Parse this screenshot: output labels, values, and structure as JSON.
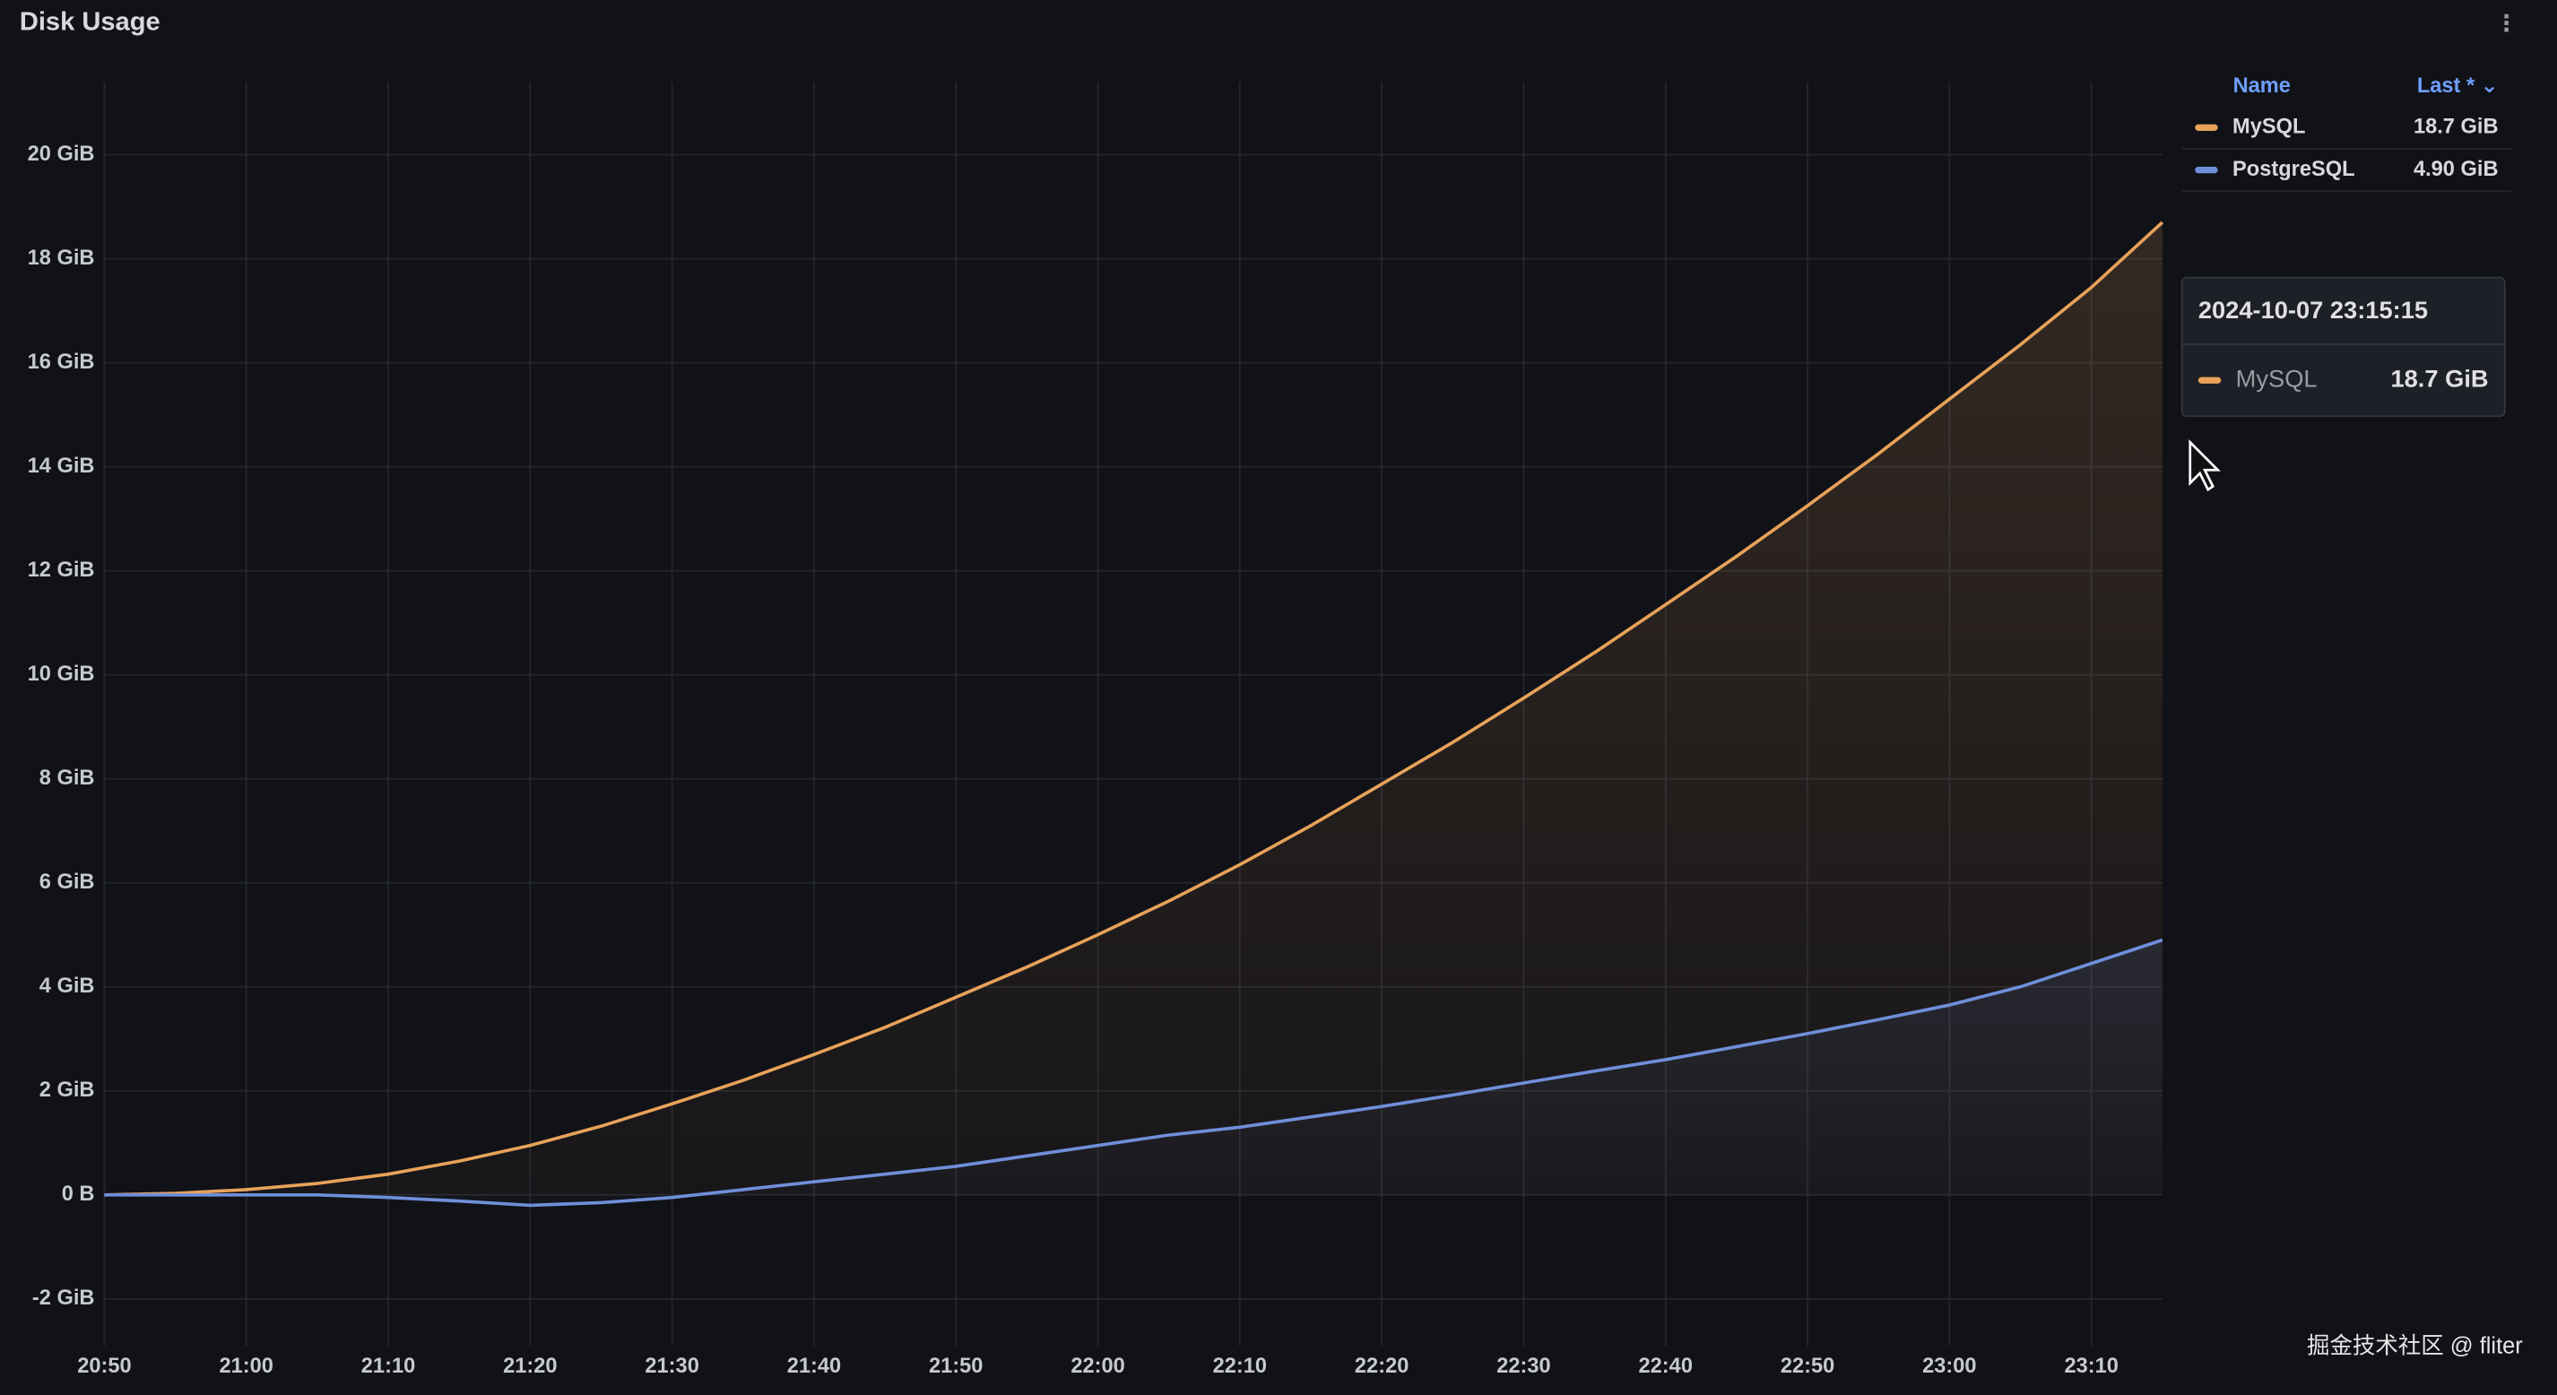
{
  "chart_data": {
    "type": "line",
    "title": "Disk Usage",
    "x": [
      "20:50",
      "20:55",
      "21:00",
      "21:05",
      "21:10",
      "21:15",
      "21:20",
      "21:25",
      "21:30",
      "21:35",
      "21:40",
      "21:45",
      "21:50",
      "21:55",
      "22:00",
      "22:05",
      "22:10",
      "22:15",
      "22:20",
      "22:25",
      "22:30",
      "22:35",
      "22:40",
      "22:45",
      "22:50",
      "22:55",
      "23:00",
      "23:05",
      "23:10",
      "23:15"
    ],
    "xticks": [
      "20:50",
      "21:00",
      "21:10",
      "21:20",
      "21:30",
      "21:40",
      "21:50",
      "22:00",
      "22:10",
      "22:20",
      "22:30",
      "22:40",
      "22:50",
      "23:00",
      "23:10"
    ],
    "ylim": [
      -2.9,
      21.4
    ],
    "yticks": [
      {
        "value": -2,
        "label": "-2 GiB"
      },
      {
        "value": 0,
        "label": "0 B"
      },
      {
        "value": 2,
        "label": "2 GiB"
      },
      {
        "value": 4,
        "label": "4 GiB"
      },
      {
        "value": 6,
        "label": "6 GiB"
      },
      {
        "value": 8,
        "label": "8 GiB"
      },
      {
        "value": 10,
        "label": "10 GiB"
      },
      {
        "value": 12,
        "label": "12 GiB"
      },
      {
        "value": 14,
        "label": "14 GiB"
      },
      {
        "value": 16,
        "label": "16 GiB"
      },
      {
        "value": 18,
        "label": "18 GiB"
      },
      {
        "value": 20,
        "label": "20 GiB"
      }
    ],
    "grid": true,
    "legend_headers": [
      "Name",
      "Last * ⌄"
    ],
    "series": [
      {
        "name": "MySQL",
        "color": "#e8a25a",
        "last": "18.7 GiB",
        "values": [
          0,
          0.03,
          0.1,
          0.22,
          0.4,
          0.65,
          0.95,
          1.32,
          1.75,
          2.2,
          2.7,
          3.22,
          3.8,
          4.38,
          5.0,
          5.65,
          6.35,
          7.1,
          7.9,
          8.7,
          9.55,
          10.43,
          11.35,
          12.28,
          13.25,
          14.25,
          15.3,
          16.35,
          17.45,
          18.7
        ]
      },
      {
        "name": "PostgreSQL",
        "color": "#6f8fda",
        "last": "4.90 GiB",
        "values": [
          0,
          0,
          0,
          0,
          -0.05,
          -0.12,
          -0.2,
          -0.15,
          -0.05,
          0.1,
          0.25,
          0.4,
          0.55,
          0.75,
          0.95,
          1.15,
          1.3,
          1.5,
          1.7,
          1.92,
          2.15,
          2.38,
          2.6,
          2.85,
          3.1,
          3.37,
          3.65,
          4.0,
          4.45,
          4.9
        ]
      }
    ],
    "tooltip": {
      "time": "2024-10-07 23:15:15",
      "series": "MySQL",
      "value": "18.7 GiB"
    }
  },
  "watermark": "掘金技术社区 @ fliter"
}
